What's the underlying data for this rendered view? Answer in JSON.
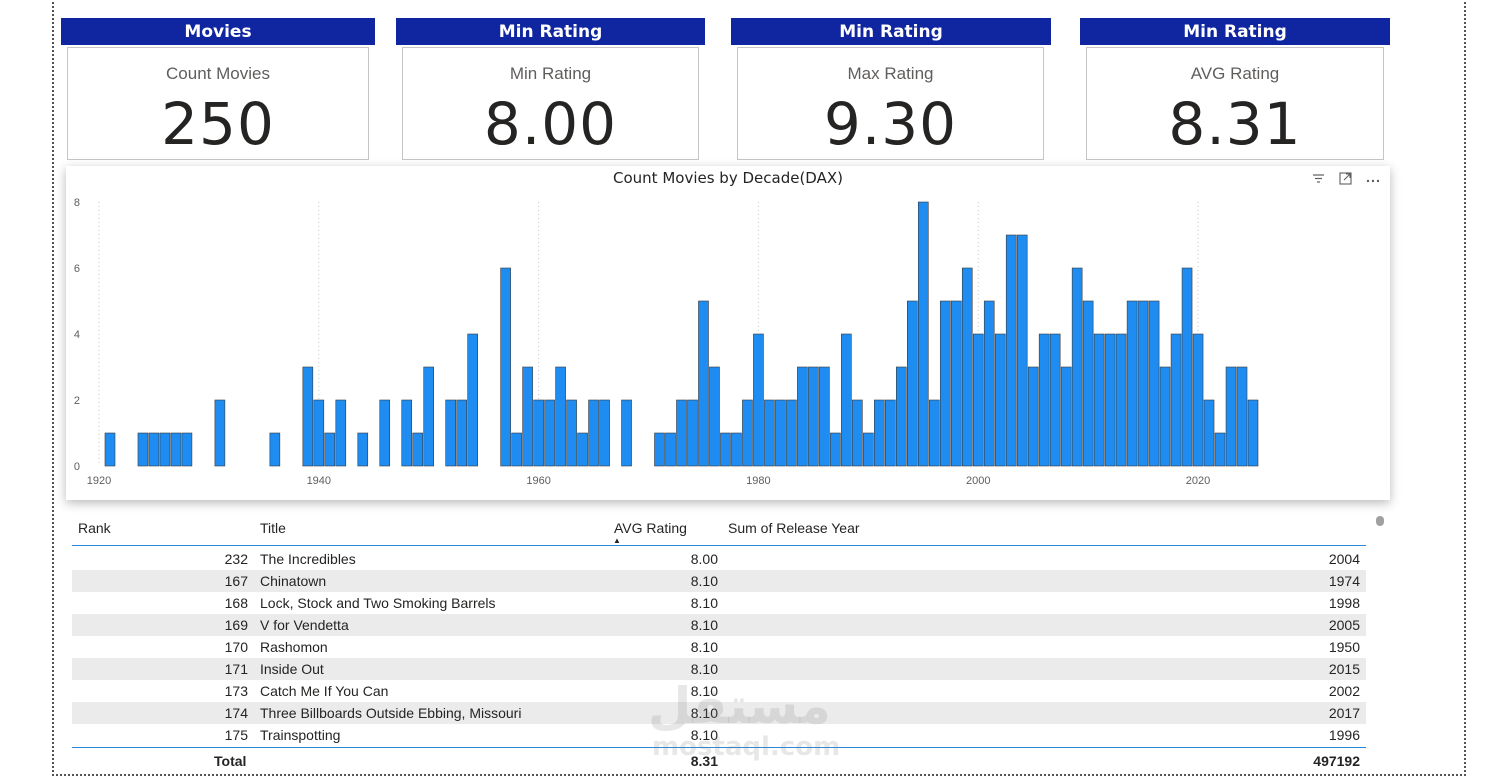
{
  "cards": [
    {
      "header": "Movies",
      "label": "Count Movies",
      "value": "250"
    },
    {
      "header": "Min Rating",
      "label": "Min Rating",
      "value": "8.00"
    },
    {
      "header": "Min Rating",
      "label": "Max Rating",
      "value": "9.30"
    },
    {
      "header": "Min Rating",
      "label": "AVG Rating",
      "value": "8.31"
    }
  ],
  "chart_data": {
    "type": "bar",
    "title": "Count Movies by Decade(DAX)",
    "xlabel": "",
    "ylabel": "",
    "xlim": [
      1920,
      2025
    ],
    "ylim": [
      0,
      8
    ],
    "x_ticks": [
      1920,
      1940,
      1960,
      1980,
      2000,
      2020
    ],
    "y_ticks": [
      0,
      2,
      4,
      6,
      8
    ],
    "bar_color": "#1E8CF0",
    "grid": "vertical dotted",
    "x": [
      1921,
      1924,
      1925,
      1926,
      1927,
      1928,
      1931,
      1936,
      1939,
      1940,
      1941,
      1942,
      1944,
      1946,
      1948,
      1949,
      1950,
      1952,
      1953,
      1954,
      1957,
      1958,
      1959,
      1960,
      1961,
      1962,
      1963,
      1964,
      1965,
      1966,
      1968,
      1971,
      1972,
      1973,
      1974,
      1975,
      1976,
      1977,
      1978,
      1979,
      1980,
      1981,
      1982,
      1983,
      1984,
      1985,
      1986,
      1987,
      1988,
      1989,
      1990,
      1991,
      1992,
      1993,
      1994,
      1995,
      1996,
      1997,
      1998,
      1999,
      2000,
      2001,
      2002,
      2003,
      2004,
      2005,
      2006,
      2007,
      2008,
      2009,
      2010,
      2011,
      2012,
      2013,
      2014,
      2015,
      2016,
      2017,
      2018,
      2019,
      2020,
      2021,
      2022,
      2023,
      2024,
      2025
    ],
    "values": [
      1,
      1,
      1,
      1,
      1,
      1,
      2,
      1,
      3,
      2,
      1,
      2,
      1,
      2,
      2,
      1,
      3,
      2,
      2,
      4,
      6,
      1,
      3,
      2,
      2,
      3,
      2,
      1,
      2,
      2,
      2,
      1,
      1,
      2,
      2,
      5,
      3,
      1,
      1,
      2,
      4,
      2,
      2,
      2,
      3,
      3,
      3,
      1,
      4,
      2,
      1,
      2,
      2,
      3,
      5,
      8,
      2,
      5,
      5,
      6,
      4,
      5,
      4,
      7,
      7,
      3,
      4,
      4,
      3,
      6,
      5,
      4,
      4,
      4,
      5,
      5,
      5,
      3,
      4,
      6,
      4,
      2,
      1,
      3,
      3,
      2
    ]
  },
  "chart_icons": [
    "filter-icon",
    "focus-mode-icon",
    "more-options-icon"
  ],
  "table": {
    "headers": {
      "rank": "Rank",
      "title": "Title",
      "avg": "AVG Rating",
      "year": "Sum of Release Year"
    },
    "rows": [
      {
        "rank": "232",
        "title": "The Incredibles",
        "avg": "8.00",
        "year": "2004"
      },
      {
        "rank": "167",
        "title": "Chinatown",
        "avg": "8.10",
        "year": "1974"
      },
      {
        "rank": "168",
        "title": "Lock, Stock and Two Smoking Barrels",
        "avg": "8.10",
        "year": "1998"
      },
      {
        "rank": "169",
        "title": "V for Vendetta",
        "avg": "8.10",
        "year": "2005"
      },
      {
        "rank": "170",
        "title": "Rashomon",
        "avg": "8.10",
        "year": "1950"
      },
      {
        "rank": "171",
        "title": "Inside Out",
        "avg": "8.10",
        "year": "2015"
      },
      {
        "rank": "173",
        "title": "Catch Me If You Can",
        "avg": "8.10",
        "year": "2002"
      },
      {
        "rank": "174",
        "title": "Three Billboards Outside Ebbing, Missouri",
        "avg": "8.10",
        "year": "2017"
      },
      {
        "rank": "175",
        "title": "Trainspotting",
        "avg": "8.10",
        "year": "1996"
      }
    ],
    "total": {
      "label": "Total",
      "avg": "8.31",
      "year": "497192"
    }
  },
  "watermark": {
    "arabic": "مستقل",
    "latin": "mostaql.com"
  }
}
